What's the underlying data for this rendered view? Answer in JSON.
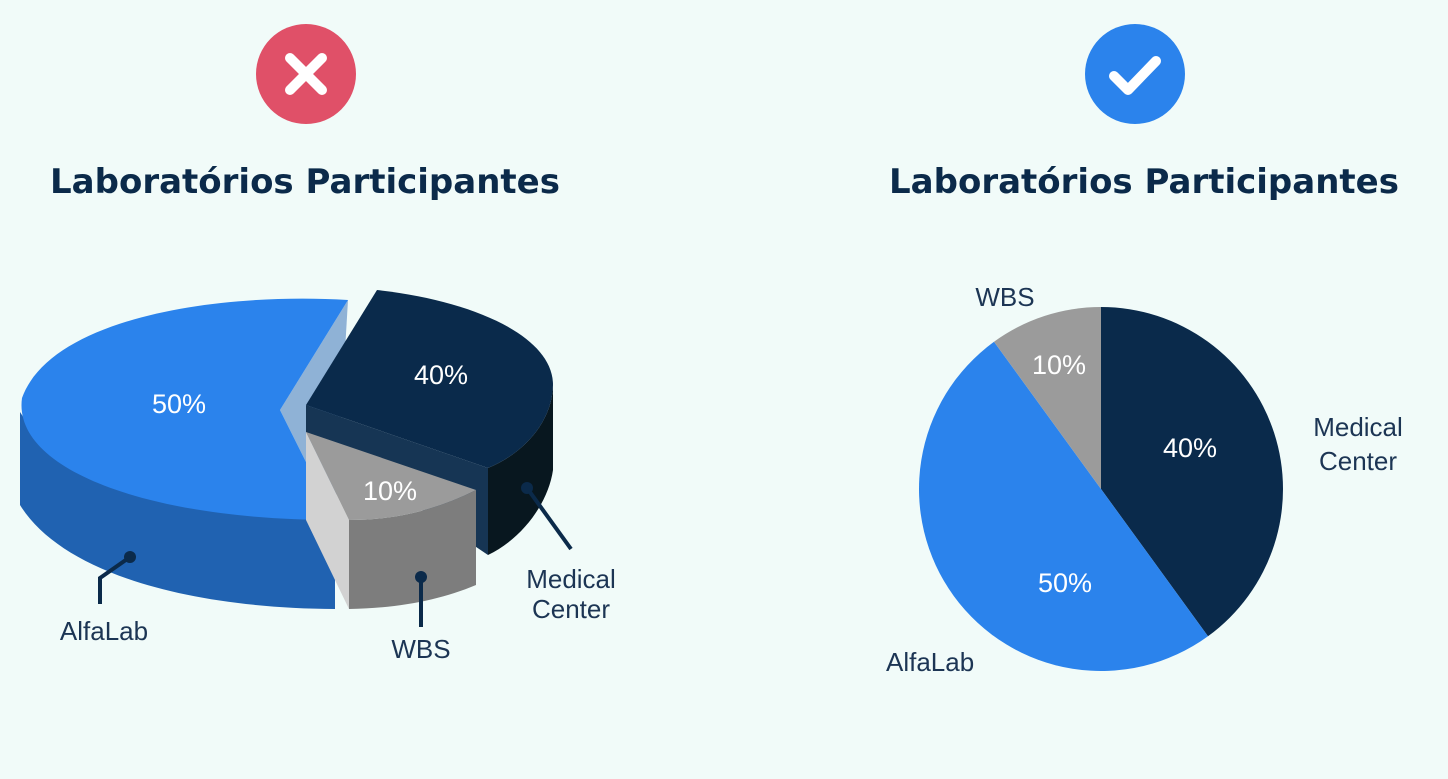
{
  "colors": {
    "background": "#f1fbf9",
    "title": "#0b2a4a",
    "bad_badge": "#e05068",
    "good_badge": "#2b83ec"
  },
  "badges": {
    "left": {
      "icon": "x-icon",
      "color": "#e05068"
    },
    "right": {
      "icon": "check-icon",
      "color": "#2b83ec"
    }
  },
  "chart_data": [
    {
      "type": "pie",
      "style": "3d-exploded",
      "title": "Laboratórios Participantes",
      "slices": [
        {
          "name": "AlfaLab",
          "value": 50,
          "label": "50%",
          "color": "#2b83ec"
        },
        {
          "name": "Medical Center",
          "name_lines": [
            "Medical",
            "Center"
          ],
          "value": 40,
          "label": "40%",
          "color": "#0a2a4b"
        },
        {
          "name": "WBS",
          "value": 10,
          "label": "10%",
          "color": "#9b9b9b"
        }
      ]
    },
    {
      "type": "pie",
      "style": "2d",
      "title": "Laboratórios Participantes",
      "slices": [
        {
          "name": "Medical Center",
          "name_lines": [
            "Medical",
            "Center"
          ],
          "value": 40,
          "label": "40%",
          "color": "#0a2a4b"
        },
        {
          "name": "AlfaLab",
          "value": 50,
          "label": "50%",
          "color": "#2b83ec"
        },
        {
          "name": "WBS",
          "value": 10,
          "label": "10%",
          "color": "#9b9b9b"
        }
      ]
    }
  ]
}
